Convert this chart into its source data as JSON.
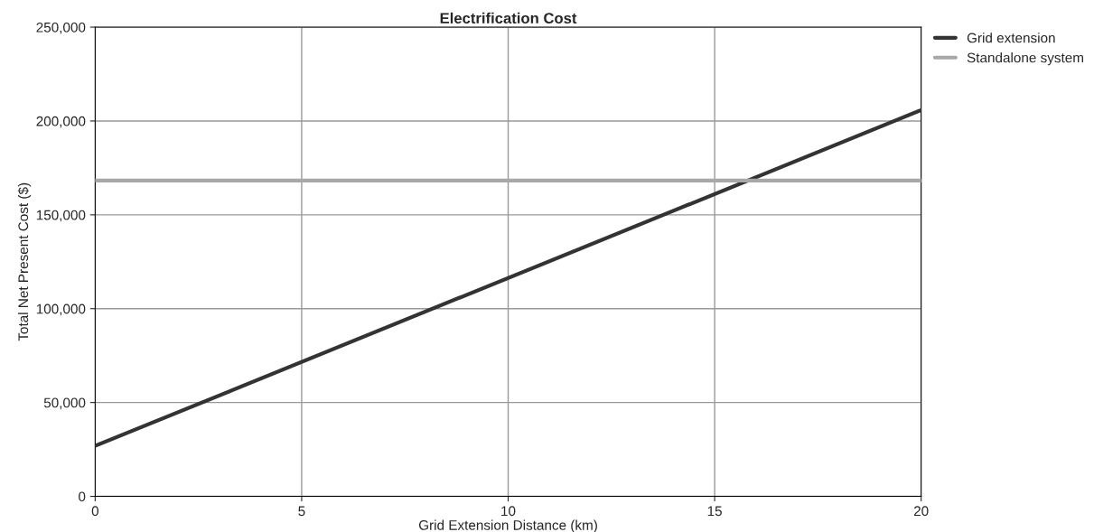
{
  "chart_data": {
    "type": "line",
    "title": "Electrification Cost",
    "xlabel": "Grid Extension Distance (km)",
    "ylabel": "Total Net Present Cost ($)",
    "x": [
      0,
      20
    ],
    "series": [
      {
        "name": "Grid extension",
        "color": "#333333",
        "values": [
          26900,
          205800
        ]
      },
      {
        "name": "Standalone system",
        "color": "#a8a8a8",
        "values": [
          168300,
          168300
        ]
      }
    ],
    "xlim": [
      0,
      20
    ],
    "xticks": [
      0,
      5,
      10,
      15,
      20
    ],
    "ylim": [
      0,
      250000
    ],
    "yticks": [
      {
        "value": 0,
        "label": "0"
      },
      {
        "value": 50000,
        "label": "50,000"
      },
      {
        "value": 100000,
        "label": "100,000"
      },
      {
        "value": 150000,
        "label": "150,000"
      },
      {
        "value": 200000,
        "label": "200,000"
      },
      {
        "value": 250000,
        "label": "250,000"
      }
    ],
    "grid": true,
    "legend": "top right",
    "marker": "none",
    "line_style": "solid"
  }
}
